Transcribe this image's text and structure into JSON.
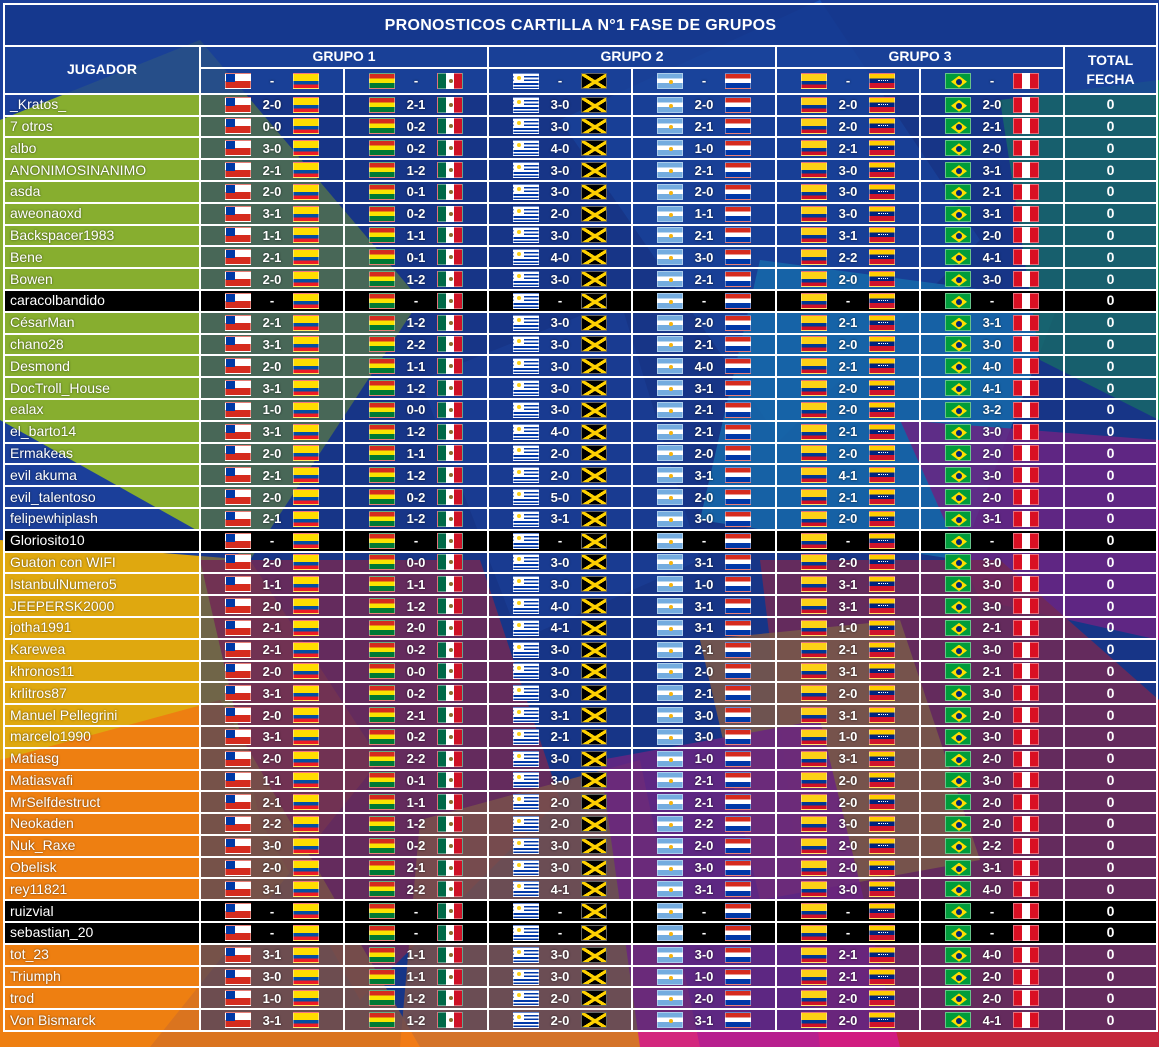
{
  "title": "PRONOSTICOS CARTILLA N°1 FASE DE GRUPOS",
  "header": {
    "player_label": "JUGADOR",
    "total_label_line1": "TOTAL",
    "total_label_line2": "FECHA",
    "groups": [
      "GRUPO 1",
      "GRUPO 2",
      "GRUPO 3"
    ],
    "placeholder": "-"
  },
  "matches": [
    {
      "home": "chile",
      "away": "ecuador"
    },
    {
      "home": "bolivia",
      "away": "mexico"
    },
    {
      "home": "uruguay",
      "away": "jamaica"
    },
    {
      "home": "argentina",
      "away": "paraguay"
    },
    {
      "home": "colombia",
      "away": "venezuela"
    },
    {
      "home": "brazil",
      "away": "peru"
    }
  ],
  "dark_row_color": "#000000",
  "rows": [
    {
      "name": "_Kratos_",
      "scores": [
        "2-0",
        "2-1",
        "3-0",
        "2-0",
        "2-0",
        "2-0"
      ],
      "total": "0"
    },
    {
      "name": "7 otros",
      "scores": [
        "0-0",
        "0-2",
        "3-0",
        "2-1",
        "2-0",
        "2-1"
      ],
      "total": "0"
    },
    {
      "name": "albo",
      "scores": [
        "3-0",
        "0-2",
        "4-0",
        "1-0",
        "2-1",
        "2-0"
      ],
      "total": "0"
    },
    {
      "name": "ANONIMOSINANIMO",
      "scores": [
        "2-1",
        "1-2",
        "3-0",
        "2-1",
        "3-0",
        "3-1"
      ],
      "total": "0"
    },
    {
      "name": "asda",
      "scores": [
        "2-0",
        "0-1",
        "3-0",
        "2-0",
        "3-0",
        "2-1"
      ],
      "total": "0"
    },
    {
      "name": "aweonaoxd",
      "scores": [
        "3-1",
        "0-2",
        "2-0",
        "1-1",
        "3-0",
        "3-1"
      ],
      "total": "0"
    },
    {
      "name": "Backspacer1983",
      "scores": [
        "1-1",
        "1-1",
        "3-0",
        "2-1",
        "3-1",
        "2-0"
      ],
      "total": "0"
    },
    {
      "name": "Bene",
      "scores": [
        "2-1",
        "0-1",
        "4-0",
        "3-0",
        "2-2",
        "4-1"
      ],
      "total": "0"
    },
    {
      "name": "Bowen",
      "scores": [
        "2-0",
        "1-2",
        "3-0",
        "2-1",
        "2-0",
        "3-0"
      ],
      "total": "0"
    },
    {
      "name": "caracolbandido",
      "scores": [
        "-",
        "-",
        "-",
        "-",
        "-",
        "-"
      ],
      "total": "0",
      "dark": true
    },
    {
      "name": "CésarMan",
      "scores": [
        "2-1",
        "1-2",
        "3-0",
        "2-0",
        "2-1",
        "3-1"
      ],
      "total": "0"
    },
    {
      "name": "chano28",
      "scores": [
        "3-1",
        "2-2",
        "3-0",
        "2-1",
        "2-0",
        "3-0"
      ],
      "total": "0"
    },
    {
      "name": "Desmond",
      "scores": [
        "2-0",
        "1-1",
        "3-0",
        "4-0",
        "2-1",
        "4-0"
      ],
      "total": "0"
    },
    {
      "name": "DocTroll_House",
      "scores": [
        "3-1",
        "1-2",
        "3-0",
        "3-1",
        "2-0",
        "4-1"
      ],
      "total": "0"
    },
    {
      "name": "ealax",
      "scores": [
        "1-0",
        "0-0",
        "3-0",
        "2-1",
        "2-0",
        "3-2"
      ],
      "total": "0"
    },
    {
      "name": "el_barto14",
      "scores": [
        "3-1",
        "1-2",
        "4-0",
        "2-1",
        "2-1",
        "3-0"
      ],
      "total": "0"
    },
    {
      "name": "Ermakeas",
      "scores": [
        "2-0",
        "1-1",
        "2-0",
        "2-0",
        "2-0",
        "2-0"
      ],
      "total": "0"
    },
    {
      "name": "evil akuma",
      "scores": [
        "2-1",
        "1-2",
        "2-0",
        "3-1",
        "4-1",
        "3-0"
      ],
      "total": "0"
    },
    {
      "name": "evil_talentoso",
      "scores": [
        "2-0",
        "0-2",
        "5-0",
        "2-0",
        "2-1",
        "2-0"
      ],
      "total": "0"
    },
    {
      "name": "felipewhiplash",
      "scores": [
        "2-1",
        "1-2",
        "3-1",
        "3-0",
        "2-0",
        "3-1"
      ],
      "total": "0"
    },
    {
      "name": "Gloriosito10",
      "scores": [
        "-",
        "-",
        "-",
        "-",
        "-",
        "-"
      ],
      "total": "0",
      "dark": true
    },
    {
      "name": "Guaton con WIFI",
      "scores": [
        "2-0",
        "0-0",
        "3-0",
        "3-1",
        "2-0",
        "3-0"
      ],
      "total": "0"
    },
    {
      "name": "IstanbulNumero5",
      "scores": [
        "1-1",
        "1-1",
        "3-0",
        "1-0",
        "3-1",
        "3-0"
      ],
      "total": "0"
    },
    {
      "name": "JEEPERSK2000",
      "scores": [
        "2-0",
        "1-2",
        "4-0",
        "3-1",
        "3-1",
        "3-0"
      ],
      "total": "0"
    },
    {
      "name": "jotha1991",
      "scores": [
        "2-1",
        "2-0",
        "4-1",
        "3-1",
        "1-0",
        "2-1"
      ],
      "total": "0"
    },
    {
      "name": "Karewea",
      "scores": [
        "2-1",
        "0-2",
        "3-0",
        "2-1",
        "2-1",
        "3-0"
      ],
      "total": "0"
    },
    {
      "name": "khronos11",
      "scores": [
        "2-0",
        "0-0",
        "3-0",
        "2-0",
        "3-1",
        "2-1"
      ],
      "total": "0"
    },
    {
      "name": "krlitros87",
      "scores": [
        "3-1",
        "0-2",
        "3-0",
        "2-1",
        "2-0",
        "3-0"
      ],
      "total": "0"
    },
    {
      "name": "Manuel Pellegrini",
      "scores": [
        "2-0",
        "2-1",
        "3-1",
        "3-0",
        "3-1",
        "2-0"
      ],
      "total": "0"
    },
    {
      "name": "marcelo1990",
      "scores": [
        "3-1",
        "0-2",
        "2-1",
        "3-0",
        "1-0",
        "3-0"
      ],
      "total": "0"
    },
    {
      "name": "Matiasg",
      "scores": [
        "2-0",
        "2-2",
        "3-0",
        "1-0",
        "3-1",
        "2-0"
      ],
      "total": "0"
    },
    {
      "name": "Matiasvafi",
      "scores": [
        "1-1",
        "0-1",
        "3-0",
        "2-1",
        "2-0",
        "3-0"
      ],
      "total": "0"
    },
    {
      "name": "MrSelfdestruct",
      "scores": [
        "2-1",
        "1-1",
        "2-0",
        "2-1",
        "2-0",
        "2-0"
      ],
      "total": "0"
    },
    {
      "name": "Neokaden",
      "scores": [
        "2-2",
        "1-2",
        "2-0",
        "2-2",
        "3-0",
        "2-0"
      ],
      "total": "0"
    },
    {
      "name": "Nuk_Raxe",
      "scores": [
        "3-0",
        "0-2",
        "3-0",
        "2-0",
        "2-0",
        "2-2"
      ],
      "total": "0"
    },
    {
      "name": "Obelisk",
      "scores": [
        "2-0",
        "2-1",
        "3-0",
        "3-0",
        "2-0",
        "3-1"
      ],
      "total": "0"
    },
    {
      "name": "rey11821",
      "scores": [
        "3-1",
        "2-2",
        "4-1",
        "3-1",
        "3-0",
        "4-0"
      ],
      "total": "0"
    },
    {
      "name": "ruizvial",
      "scores": [
        "-",
        "-",
        "-",
        "-",
        "-",
        "-"
      ],
      "total": "0",
      "dark": true
    },
    {
      "name": "sebastian_20",
      "scores": [
        "-",
        "-",
        "-",
        "-",
        "-",
        "-"
      ],
      "total": "0",
      "dark": true
    },
    {
      "name": "tot_23",
      "scores": [
        "3-1",
        "1-1",
        "3-0",
        "3-0",
        "2-1",
        "4-0"
      ],
      "total": "0"
    },
    {
      "name": "Triumph",
      "scores": [
        "3-0",
        "1-1",
        "3-0",
        "1-0",
        "2-1",
        "2-0"
      ],
      "total": "0"
    },
    {
      "name": "trod",
      "scores": [
        "1-0",
        "1-2",
        "2-0",
        "2-0",
        "2-0",
        "2-0"
      ],
      "total": "0"
    },
    {
      "name": "Von Bismarck",
      "scores": [
        "3-1",
        "1-2",
        "2-0",
        "3-1",
        "2-0",
        "4-1"
      ],
      "total": "0"
    }
  ]
}
